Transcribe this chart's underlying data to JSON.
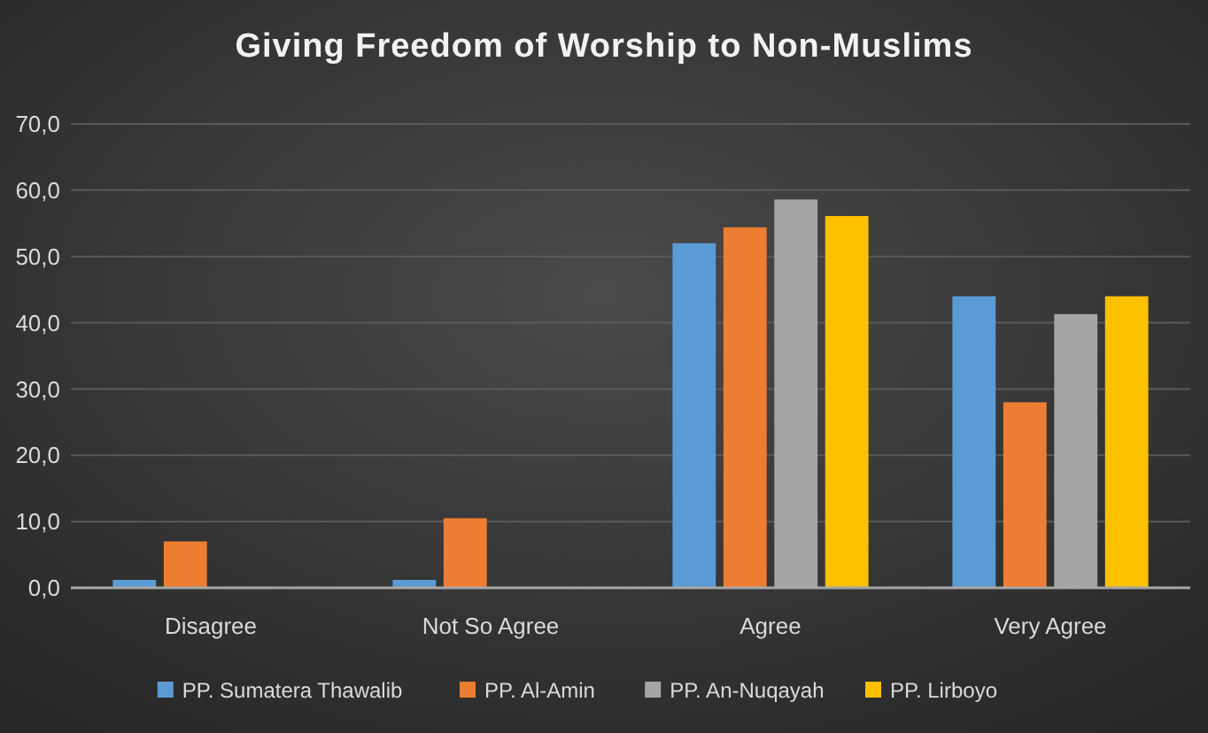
{
  "chart_data": {
    "type": "bar",
    "title": "Giving Freedom of Worship to Non-Muslims",
    "categories": [
      "Disagree",
      "Not So Agree",
      "Agree",
      "Very Agree"
    ],
    "series": [
      {
        "name": "PP. Sumatera Thawalib",
        "color": "#5b9bd5",
        "values": [
          1.2,
          1.2,
          52.0,
          44.0
        ]
      },
      {
        "name": "PP. Al-Amin",
        "color": "#ed7d31",
        "values": [
          7.0,
          10.5,
          54.4,
          28.0
        ]
      },
      {
        "name": "PP. An-Nuqayah",
        "color": "#a5a5a5",
        "values": [
          0,
          0,
          58.6,
          41.3
        ]
      },
      {
        "name": "PP. Lirboyo",
        "color": "#ffc000",
        "values": [
          0,
          0,
          56.1,
          44.0
        ]
      }
    ],
    "ylim": [
      0,
      70
    ],
    "yticks": [
      {
        "value": 0,
        "label": "0,0"
      },
      {
        "value": 10,
        "label": "10,0"
      },
      {
        "value": 20,
        "label": "20,0"
      },
      {
        "value": 30,
        "label": "30,0"
      },
      {
        "value": 40,
        "label": "40,0"
      },
      {
        "value": 50,
        "label": "50,0"
      },
      {
        "value": 60,
        "label": "60,0"
      },
      {
        "value": 70,
        "label": "70,0"
      }
    ],
    "grid": "y",
    "legend": "bottom"
  }
}
